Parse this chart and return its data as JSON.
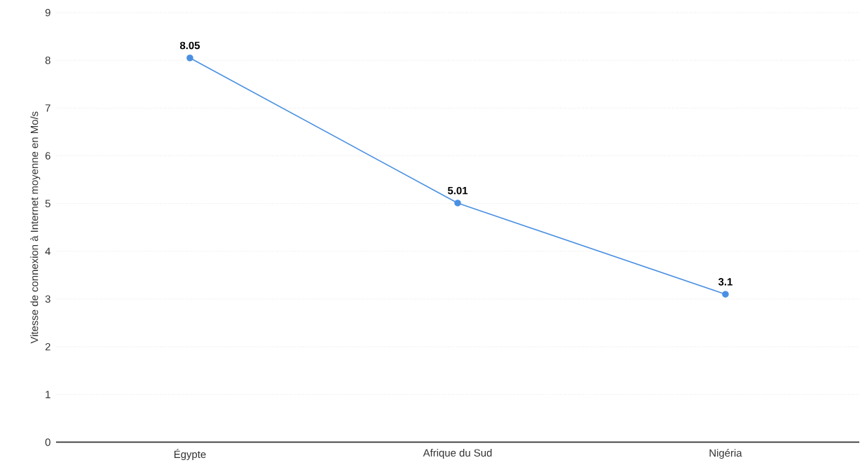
{
  "chart_data": {
    "type": "line",
    "ylabel": "Vitesse de connexion à Internet moyenne en Mo/s",
    "categories": [
      "Égypte",
      "Afrique du Sud",
      "Nigéria"
    ],
    "values": [
      8.05,
      5.01,
      3.1
    ],
    "color": "#4a90e2",
    "marker": "circle",
    "data_labels": true,
    "grid": "y",
    "ylim": [
      0,
      9
    ],
    "yticks": [
      0,
      1,
      2,
      3,
      4,
      5,
      6,
      7,
      8,
      9
    ]
  }
}
